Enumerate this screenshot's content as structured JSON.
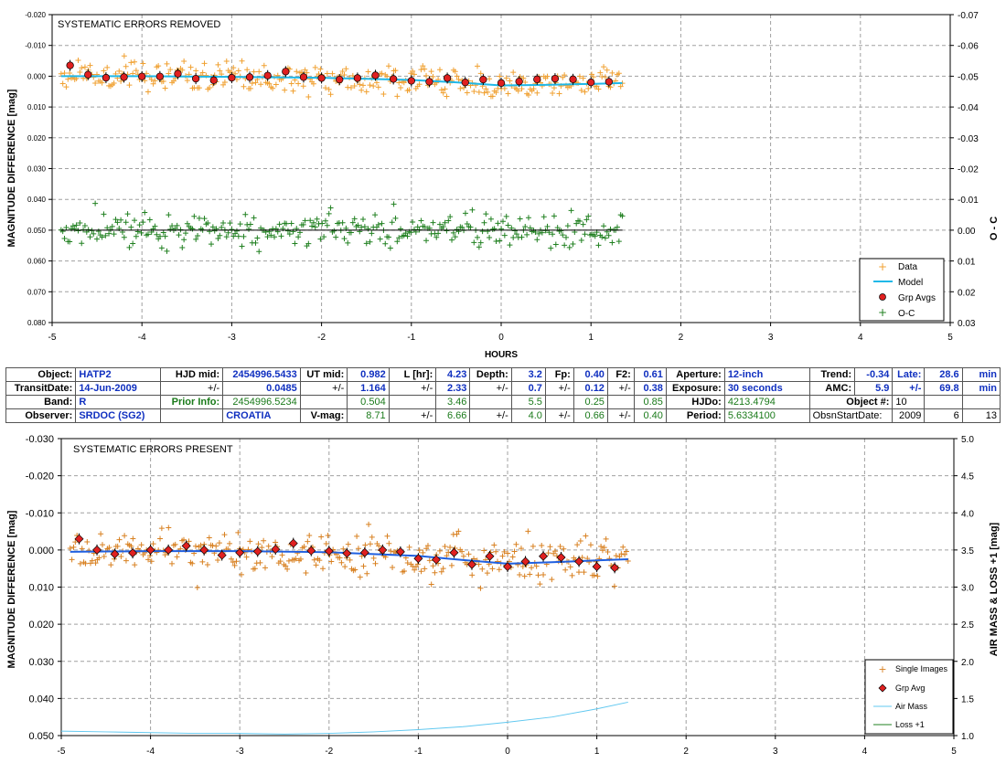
{
  "top_chart": {
    "title": "SYSTEMATIC ERRORS REMOVED",
    "ylabel": "MAGNITUDE DIFFERENCE [mag]",
    "y2label": "O - C",
    "xlabel": "HOURS",
    "x_ticks": [
      "-5",
      "-4",
      "-3",
      "-2",
      "-1",
      "0",
      "1",
      "2",
      "3",
      "4",
      "5"
    ],
    "y_ticks": [
      "-0.020",
      "-0.010",
      "0.000",
      "0.010",
      "0.020",
      "0.030",
      "0.040",
      "0.050",
      "0.060",
      "0.070",
      "0.080"
    ],
    "y2_ticks": [
      "-0.07",
      "-0.06",
      "-0.05",
      "-0.04",
      "-0.03",
      "-0.02",
      "-0.01",
      "0.00",
      "0.01",
      "0.02",
      "0.03"
    ],
    "legend": [
      "Data",
      "Model",
      "Grp Avgs",
      "O-C"
    ]
  },
  "bottom_chart": {
    "title": "SYSTEMATIC ERRORS PRESENT",
    "ylabel": "MAGNITUDE DIFFERENCE [mag]",
    "y2label": "AIR MASS & LOSS +1 [mag]",
    "x_ticks": [
      "-5",
      "-4",
      "-3",
      "-2",
      "-1",
      "0",
      "1",
      "2",
      "3",
      "4",
      "5"
    ],
    "y_ticks": [
      "-0.030",
      "-0.020",
      "-0.010",
      "0.000",
      "0.010",
      "0.020",
      "0.030",
      "0.040",
      "0.050"
    ],
    "y2_ticks": [
      "5.0",
      "4.5",
      "4.0",
      "3.5",
      "3.0",
      "2.5",
      "2.0",
      "1.5",
      "1.0"
    ],
    "legend": [
      "Single Images",
      "Grp Avg",
      "Air Mass",
      "Loss +1"
    ]
  },
  "info": {
    "r1": [
      "Object:",
      "HATP2",
      "HJD mid:",
      "2454996.5433",
      "UT mid:",
      "0.982",
      "L [hr]:",
      "4.23",
      "Depth:",
      "3.2",
      "Fp:",
      "0.40",
      "F2:",
      "0.61",
      "Aperture:",
      "12-inch",
      "Trend:",
      "-0.34",
      "Late:",
      "28.6",
      "min"
    ],
    "r2": [
      "TransitDate:",
      "14-Jun-2009",
      "+/-",
      "0.0485",
      "+/-",
      "1.164",
      "+/-",
      "2.33",
      "+/-",
      "0.7",
      "+/-",
      "0.12",
      "+/-",
      "0.38",
      "Exposure:",
      "30 seconds",
      "AMC:",
      "5.9",
      "+/-",
      "69.8",
      "min"
    ],
    "r3": [
      "Band:",
      "R",
      "Prior Info:",
      "2454996.5234",
      "0.504",
      "3.46",
      "5.5",
      "0.25",
      "0.85",
      "HJDo:",
      "4213.4794",
      "Object #:",
      "10"
    ],
    "r4": [
      "Observer:",
      "SRDOC (SG2)",
      "CROATIA",
      "V-mag:",
      "8.71",
      "+/-",
      "6.66",
      "+/-",
      "4.0",
      "+/-",
      "0.66",
      "+/-",
      "0.40",
      "Period:",
      "5.6334100",
      "ObsnStartDate:",
      "2009",
      "6",
      "13"
    ]
  },
  "colors": {
    "data": "#f0a030",
    "model": "#20b8e8",
    "grp_avg": "#e02020",
    "oc": "#208020",
    "single": "#d88020",
    "airmass": "#60c8f0",
    "loss": "#208020",
    "grid": "#a0a0a0"
  },
  "chart_data": [
    {
      "type": "scatter",
      "title": "SYSTEMATIC ERRORS REMOVED",
      "xlabel": "HOURS",
      "ylabel": "MAGNITUDE DIFFERENCE [mag]",
      "y2label": "O - C",
      "xlim": [
        -5,
        5
      ],
      "ylim": [
        0.08,
        -0.02
      ],
      "y2lim": [
        0.03,
        -0.07
      ],
      "grid": true,
      "legend_position": "bottom-right",
      "grp_avgs": {
        "x": [
          -4.8,
          -4.6,
          -4.4,
          -4.2,
          -4.0,
          -3.8,
          -3.6,
          -3.4,
          -3.2,
          -3.0,
          -2.8,
          -2.6,
          -2.4,
          -2.2,
          -2.0,
          -1.8,
          -1.6,
          -1.4,
          -1.2,
          -1.0,
          -0.8,
          -0.6,
          -0.4,
          -0.2,
          0.0,
          0.2,
          0.4,
          0.6,
          0.8,
          1.0,
          1.2
        ],
        "y": [
          -0.0035,
          -0.0005,
          0.0005,
          0.0003,
          0.0001,
          0.0001,
          -0.0008,
          0.0008,
          0.0013,
          0.0005,
          0.0003,
          -0.0002,
          -0.0015,
          0.0003,
          0.0006,
          0.0011,
          0.0006,
          -0.0003,
          0.0009,
          0.0015,
          0.0018,
          0.0006,
          0.002,
          0.0011,
          0.0022,
          0.0017,
          0.001,
          0.0008,
          0.001,
          0.002,
          0.0018
        ]
      },
      "model": {
        "x": [
          -4.9,
          -4.0,
          -3.0,
          -2.0,
          -1.0,
          -0.5,
          0.0,
          0.5,
          1.0,
          1.35
        ],
        "y": [
          0.0,
          0.0,
          0.0002,
          0.0005,
          0.0012,
          0.002,
          0.003,
          0.0028,
          0.0025,
          0.0022
        ]
      },
      "oc_trend": {
        "x": [
          -4.9,
          1.35
        ],
        "y": [
          0.0,
          0.0
        ]
      },
      "data_scatter_sd": 0.0025,
      "oc_scatter_sd": 0.0025
    },
    {
      "type": "scatter",
      "title": "SYSTEMATIC ERRORS PRESENT",
      "ylabel": "MAGNITUDE DIFFERENCE [mag]",
      "y2label": "AIR MASS & LOSS +1 [mag]",
      "xlim": [
        -5,
        5
      ],
      "ylim": [
        0.05,
        -0.03
      ],
      "y2lim": [
        1.0,
        5.0
      ],
      "grid": true,
      "legend_position": "bottom-right",
      "grp_avgs": {
        "x": [
          -4.8,
          -4.6,
          -4.4,
          -4.2,
          -4.0,
          -3.8,
          -3.6,
          -3.4,
          -3.2,
          -3.0,
          -2.8,
          -2.6,
          -2.4,
          -2.2,
          -2.0,
          -1.8,
          -1.6,
          -1.4,
          -1.2,
          -1.0,
          -0.8,
          -0.6,
          -0.4,
          -0.2,
          0.0,
          0.2,
          0.4,
          0.6,
          0.8,
          1.0,
          1.2
        ],
        "y": [
          -0.003,
          0.0,
          0.0011,
          0.0008,
          0.0,
          0.0,
          -0.0011,
          0.0,
          0.0014,
          0.0007,
          0.0004,
          -0.0002,
          -0.0018,
          0.0002,
          0.0003,
          0.0009,
          0.0007,
          0.0,
          0.0005,
          0.0023,
          0.0026,
          0.0007,
          0.0039,
          0.0017,
          0.0045,
          0.0031,
          0.0017,
          0.002,
          0.0031,
          0.0045,
          0.0048
        ]
      },
      "model": {
        "x": [
          -4.9,
          -4.0,
          -3.0,
          -2.0,
          -1.0,
          -0.5,
          0.0,
          0.5,
          1.0,
          1.35
        ],
        "y": [
          0.0005,
          0.0003,
          0.0003,
          0.0006,
          0.0016,
          0.0027,
          0.0037,
          0.0033,
          0.0028,
          0.0025
        ]
      },
      "air_mass": {
        "x": [
          -5.0,
          -4.5,
          -4.0,
          -3.5,
          -3.0,
          -2.5,
          -2.0,
          -1.5,
          -1.0,
          -0.5,
          0.0,
          0.5,
          1.0,
          1.35
        ],
        "y": [
          1.06,
          1.05,
          1.04,
          1.03,
          1.03,
          1.02,
          1.03,
          1.05,
          1.08,
          1.12,
          1.18,
          1.25,
          1.36,
          1.45
        ]
      },
      "single_scatter_sd": 0.003
    }
  ]
}
